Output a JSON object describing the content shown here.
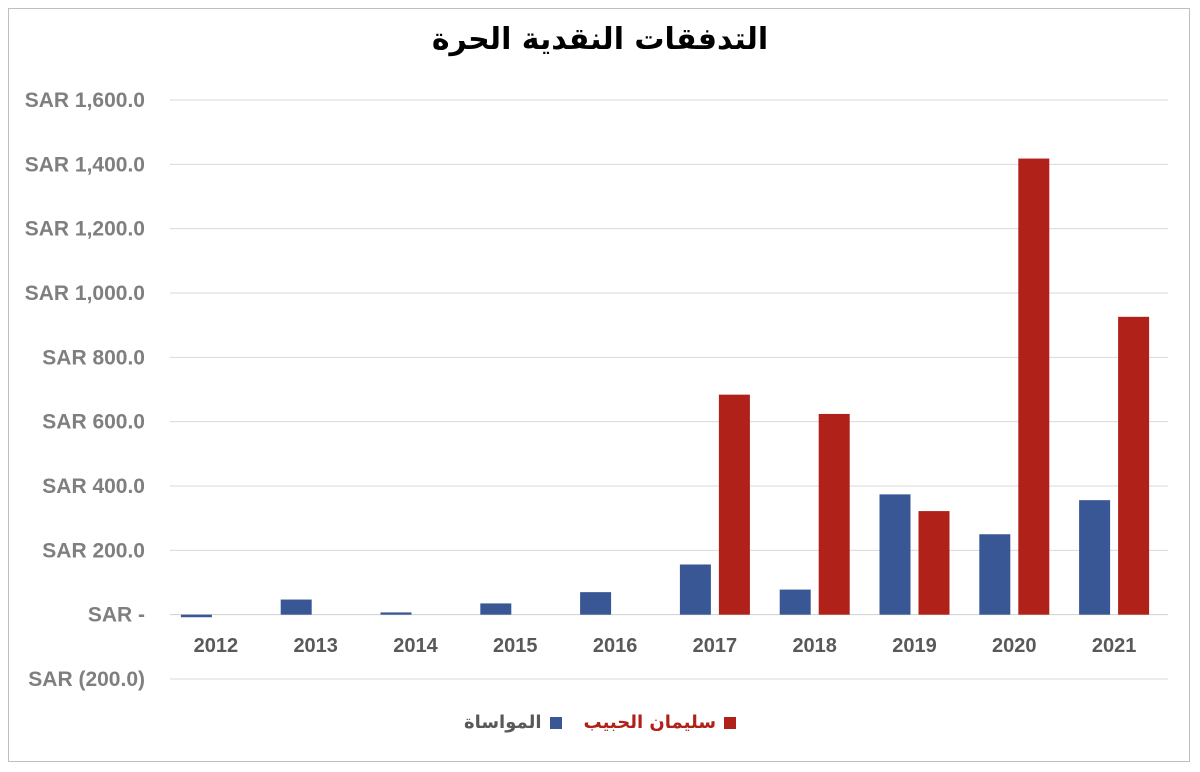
{
  "chart_data": {
    "type": "bar",
    "title": "التدفقات النقدية الحرة",
    "categories": [
      "2012",
      "2013",
      "2014",
      "2015",
      "2016",
      "2017",
      "2018",
      "2019",
      "2020",
      "2021"
    ],
    "series": [
      {
        "name": "المواساة",
        "color": "#3a5795",
        "values": [
          -8,
          47,
          7,
          35,
          70,
          156,
          78,
          374,
          250,
          356
        ]
      },
      {
        "name": "سليمان الحبيب",
        "color": "#b0211a",
        "values": [
          0,
          0,
          0,
          0,
          0,
          684,
          624,
          322,
          1418,
          926
        ]
      }
    ],
    "ylim": [
      -200,
      1600
    ],
    "yticks": [
      1600,
      1400,
      1200,
      1000,
      800,
      600,
      400,
      200,
      0,
      -200
    ],
    "ytick_labels": [
      "SAR 1,600.0",
      "SAR 1,400.0",
      "SAR 1,200.0",
      "SAR 1,000.0",
      "SAR 800.0",
      "SAR 600.0",
      "SAR 400.0",
      "SAR 200.0",
      "SAR -",
      "SAR (200.0)"
    ],
    "xlabel": "",
    "ylabel": "",
    "grid": true,
    "legend_position": "bottom"
  }
}
